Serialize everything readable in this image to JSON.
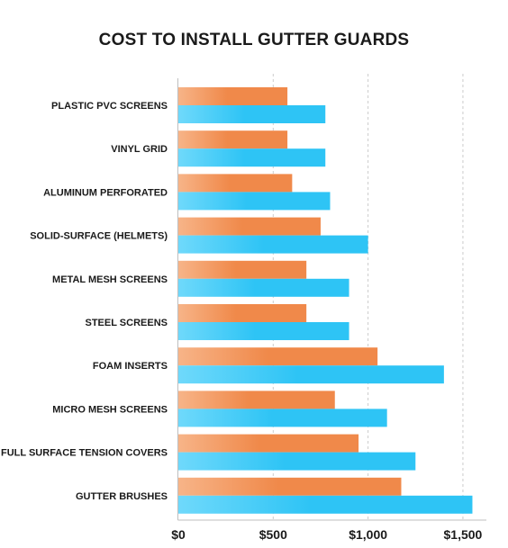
{
  "chart_data": {
    "type": "bar",
    "orientation": "horizontal",
    "title": "COST TO INSTALL GUTTER GUARDS",
    "xlabel": "",
    "ylabel": "",
    "categories": [
      "PLASTIC PVC SCREENS",
      "VINYL GRID",
      "ALUMINUM PERFORATED",
      "SOLID-SURFACE (HELMETS)",
      "METAL MESH SCREENS",
      "STEEL SCREENS",
      "FOAM INSERTS",
      "MICRO MESH SCREENS",
      "FULL SURFACE TENSION COVERS",
      "GUTTER BRUSHES"
    ],
    "series": [
      {
        "color": "#f0894a",
        "values": [
          575,
          575,
          600,
          750,
          675,
          675,
          1050,
          825,
          950,
          1175
        ]
      },
      {
        "color": "#2ec4f5",
        "values": [
          775,
          775,
          800,
          1000,
          900,
          900,
          1400,
          1100,
          1250,
          1550
        ]
      }
    ],
    "xlim": [
      0,
      1600
    ],
    "xticks": [
      0,
      500,
      1000,
      1500
    ],
    "xtick_labels": [
      "$0",
      "$500",
      "$1,000",
      "$1,500"
    ],
    "grid": "vertical dashed",
    "legend": "none"
  },
  "colors": {
    "low_series": "#f0894a",
    "high_series": "#2ec4f5",
    "gridline": "#cccccc",
    "axis": "#bfbfbf",
    "text": "#1a1a1a"
  }
}
